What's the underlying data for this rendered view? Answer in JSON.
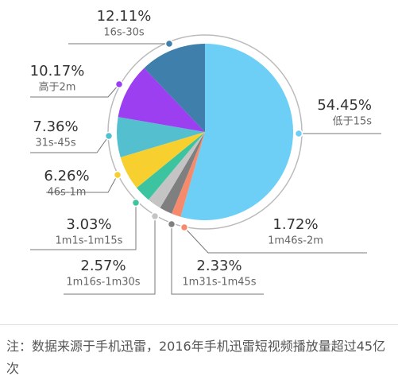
{
  "chart_data": {
    "type": "pie",
    "categories": [
      "低于15s",
      "1m46s-2m",
      "1m31s-1m45s",
      "1m16s-1m30s",
      "1m1s-1m15s",
      "46s-1m",
      "31s-45s",
      "高于2m",
      "16s-30s"
    ],
    "values": [
      54.45,
      1.72,
      2.33,
      2.57,
      3.03,
      6.26,
      7.36,
      10.17,
      12.11
    ],
    "value_labels": [
      "54.45%",
      "1.72%",
      "2.33%",
      "2.57%",
      "3.03%",
      "6.26%",
      "7.36%",
      "10.17%",
      "12.11%"
    ],
    "colors": [
      "#6dcff6",
      "#f58b6c",
      "#7f7f7f",
      "#c4c4c4",
      "#3cc4a0",
      "#f7d02f",
      "#54c0cf",
      "#9b3ff0",
      "#3e7fab"
    ]
  },
  "note": "注：数据来源于手机迅雷，2016年手机迅雷短视频播放量超过45亿次"
}
